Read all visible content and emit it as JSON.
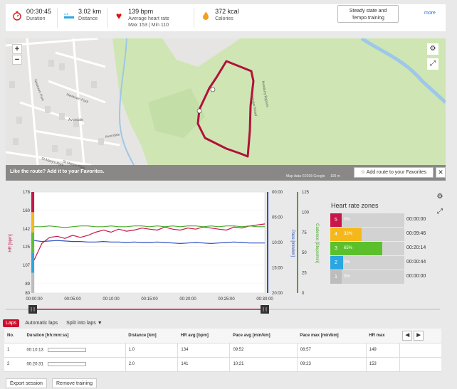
{
  "summary": {
    "duration": {
      "value": "00:30:45",
      "label": "Duration"
    },
    "distance": {
      "value": "3.02 km",
      "label": "Distance"
    },
    "heart_rate": {
      "value": "139 bpm",
      "label": "Average heart rate",
      "sub": "Max 153  |  Min 110"
    },
    "calories": {
      "value": "372 kcal",
      "label": "Calories"
    },
    "training_tag": {
      "line1": "Steady state and",
      "line2": "Tempo training"
    },
    "more_label": "more"
  },
  "map": {
    "zoom_in": "+",
    "zoom_out": "−",
    "favorite_prompt": "Like the route?  Add it to your Favorites.",
    "attribution": "Map data ©2018 Google",
    "scale": "100 m",
    "add_route_label": "Add route to your Favorites",
    "close_label": "✕",
    "street_labels": [
      "Newtown Park",
      "Newtown Park",
      "Avondale",
      "St Mary's Park",
      "St Mary's Park",
      "Avondale",
      "Newbury Bypass",
      "Hanger Road"
    ]
  },
  "chart_data": {
    "type": "line",
    "x_ticks": [
      "00:00:00",
      "00:05:00",
      "00:10:00",
      "00:15:00",
      "00:20:00",
      "00:25:00",
      "00:30:00"
    ],
    "hr_axis": {
      "label": "HR [bpm]",
      "ticks": [
        "178",
        "160",
        "142",
        "125",
        "107",
        "89",
        "80"
      ]
    },
    "pace_axis": {
      "label": "Pace [min/km]",
      "ticks": [
        "00:00",
        "05:00",
        "10:00",
        "15:00",
        "20:00"
      ]
    },
    "cadence_axis": {
      "label": "Cadence [Steps/min]",
      "ticks": [
        "125",
        "100",
        "75",
        "50",
        "25",
        "0"
      ]
    },
    "series": [
      {
        "name": "HR",
        "color": "#c8164b",
        "values": [
          112,
          128,
          134,
          135,
          133,
          136,
          134,
          136,
          139,
          141,
          139,
          142,
          140,
          141,
          143,
          142,
          141,
          144,
          142,
          141,
          143,
          142,
          144,
          143,
          142,
          141,
          144,
          143,
          145,
          146,
          147
        ]
      },
      {
        "name": "Pace",
        "color": "#2b4fbf",
        "values": [
          9.6,
          9.8,
          9.7,
          9.6,
          9.7,
          9.8,
          9.8,
          9.9,
          9.9,
          9.8,
          9.9,
          9.9,
          10.0,
          9.9,
          10.0,
          10.0,
          9.9,
          10.0,
          10.1,
          10.2,
          10.1,
          10.0,
          10.1,
          10.2,
          10.1,
          10.0,
          9.9,
          10.0,
          10.1,
          10.1,
          10.1
        ]
      },
      {
        "name": "Cadence",
        "color": "#4aa82a",
        "values": [
          82,
          82,
          83,
          82,
          81,
          82,
          83,
          83,
          82,
          82,
          83,
          82,
          82,
          83,
          83,
          82,
          83,
          82,
          83,
          82,
          83,
          83,
          82,
          83,
          82,
          83,
          83,
          82,
          83,
          82,
          82
        ]
      }
    ]
  },
  "zones": {
    "title": "Heart rate zones",
    "rows": [
      {
        "zone": "5",
        "pct": "0%",
        "fraction": 0.0,
        "time": "00:00:00",
        "color": "#c8164b"
      },
      {
        "zone": "4",
        "pct": "32%",
        "fraction": 0.32,
        "time": "00:09:46",
        "color": "#f5b81c"
      },
      {
        "zone": "3",
        "pct": "65%",
        "fraction": 0.65,
        "time": "00:20:14",
        "color": "#5cc02c"
      },
      {
        "zone": "2",
        "pct": "2%",
        "fraction": 0.02,
        "time": "00:00:44",
        "color": "#2aa7e0"
      },
      {
        "zone": "1",
        "pct": "0%",
        "fraction": 0.0,
        "time": "00:00:00",
        "color": "#bdbdbd"
      }
    ]
  },
  "tabs": {
    "laps": "Laps",
    "automatic": "Automatic laps",
    "split": "Split into laps"
  },
  "table": {
    "headers": [
      "No.",
      "Duration [hh:mm:ss]",
      "Distance [km]",
      "HR avg [bpm]",
      "Pace avg [min/km]",
      "Pace max [min/km]",
      "HR max"
    ],
    "rows": [
      {
        "no": "1",
        "duration": "00:10:13",
        "distance": "1.0",
        "hr_avg": "134",
        "pace_avg": "09:52",
        "pace_max": "08:57",
        "hr_max": "149"
      },
      {
        "no": "2",
        "duration": "00:20:31",
        "distance": "2.0",
        "hr_avg": "141",
        "pace_avg": "10:21",
        "pace_max": "09:23",
        "hr_max": "153"
      }
    ]
  },
  "actions": {
    "export": "Export session",
    "remove": "Remove training"
  }
}
